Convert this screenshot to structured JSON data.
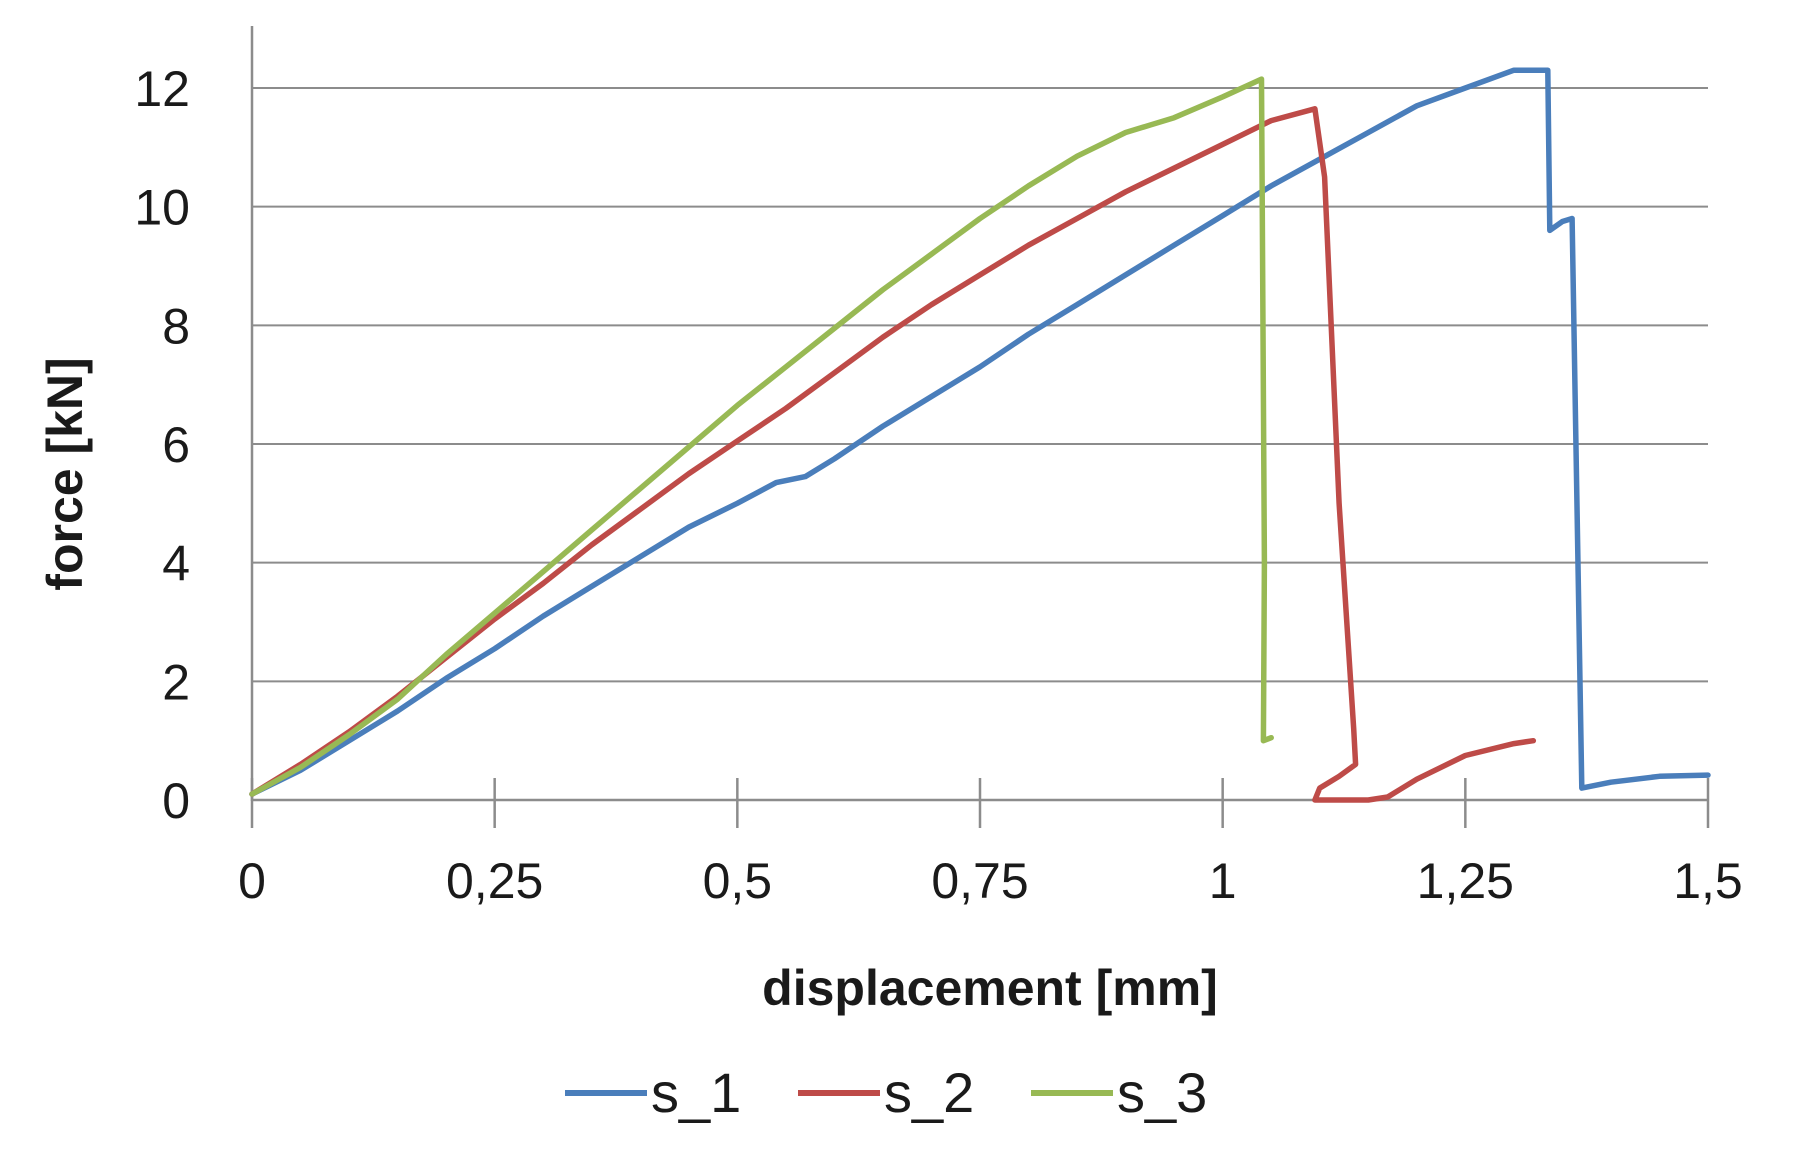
{
  "chart_data": {
    "type": "line",
    "title": "",
    "xlabel": "displacement [mm]",
    "ylabel": "force [kN]",
    "xlim": [
      0,
      1.5
    ],
    "ylim": [
      0,
      12
    ],
    "x_ticks": [
      {
        "value": 0,
        "label": "0"
      },
      {
        "value": 0.25,
        "label": "0,25"
      },
      {
        "value": 0.5,
        "label": "0,5"
      },
      {
        "value": 0.75,
        "label": "0,75"
      },
      {
        "value": 1,
        "label": "1"
      },
      {
        "value": 1.25,
        "label": "1,25"
      },
      {
        "value": 1.5,
        "label": "1,5"
      }
    ],
    "y_ticks": [
      {
        "value": 0,
        "label": "0"
      },
      {
        "value": 2,
        "label": "2"
      },
      {
        "value": 4,
        "label": "4"
      },
      {
        "value": 6,
        "label": "6"
      },
      {
        "value": 8,
        "label": "8"
      },
      {
        "value": 10,
        "label": "10"
      },
      {
        "value": 12,
        "label": "12"
      }
    ],
    "grid": "horizontal",
    "legend_position": "bottom",
    "series": [
      {
        "name": "s_1",
        "color": "#4a7ebb",
        "points": [
          [
            0,
            0.1
          ],
          [
            0.05,
            0.5
          ],
          [
            0.1,
            1.0
          ],
          [
            0.15,
            1.5
          ],
          [
            0.2,
            2.05
          ],
          [
            0.25,
            2.55
          ],
          [
            0.3,
            3.1
          ],
          [
            0.35,
            3.6
          ],
          [
            0.4,
            4.1
          ],
          [
            0.45,
            4.6
          ],
          [
            0.5,
            5.0
          ],
          [
            0.54,
            5.35
          ],
          [
            0.57,
            5.45
          ],
          [
            0.6,
            5.75
          ],
          [
            0.65,
            6.3
          ],
          [
            0.7,
            6.8
          ],
          [
            0.75,
            7.3
          ],
          [
            0.8,
            7.85
          ],
          [
            0.85,
            8.35
          ],
          [
            0.9,
            8.85
          ],
          [
            0.95,
            9.35
          ],
          [
            1.0,
            9.85
          ],
          [
            1.05,
            10.35
          ],
          [
            1.1,
            10.8
          ],
          [
            1.15,
            11.25
          ],
          [
            1.2,
            11.7
          ],
          [
            1.25,
            12.0
          ],
          [
            1.3,
            12.3
          ],
          [
            1.335,
            12.3
          ],
          [
            1.337,
            9.6
          ],
          [
            1.35,
            9.75
          ],
          [
            1.36,
            9.8
          ],
          [
            1.37,
            0.2
          ],
          [
            1.4,
            0.3
          ],
          [
            1.45,
            0.4
          ],
          [
            1.5,
            0.42
          ]
        ]
      },
      {
        "name": "s_2",
        "color": "#be4b48",
        "points": [
          [
            0,
            0.1
          ],
          [
            0.05,
            0.6
          ],
          [
            0.1,
            1.15
          ],
          [
            0.15,
            1.75
          ],
          [
            0.2,
            2.4
          ],
          [
            0.25,
            3.05
          ],
          [
            0.3,
            3.65
          ],
          [
            0.35,
            4.3
          ],
          [
            0.4,
            4.9
          ],
          [
            0.45,
            5.5
          ],
          [
            0.5,
            6.05
          ],
          [
            0.55,
            6.6
          ],
          [
            0.6,
            7.2
          ],
          [
            0.65,
            7.8
          ],
          [
            0.7,
            8.35
          ],
          [
            0.75,
            8.85
          ],
          [
            0.8,
            9.35
          ],
          [
            0.85,
            9.8
          ],
          [
            0.9,
            10.25
          ],
          [
            0.95,
            10.65
          ],
          [
            1.0,
            11.05
          ],
          [
            1.05,
            11.45
          ],
          [
            1.095,
            11.65
          ],
          [
            1.105,
            10.5
          ],
          [
            1.12,
            5.0
          ],
          [
            1.135,
            1.2
          ],
          [
            1.137,
            0.6
          ],
          [
            1.12,
            0.4
          ],
          [
            1.1,
            0.2
          ],
          [
            1.095,
            0.0
          ],
          [
            1.15,
            0.0
          ],
          [
            1.17,
            0.05
          ],
          [
            1.2,
            0.35
          ],
          [
            1.25,
            0.75
          ],
          [
            1.3,
            0.95
          ],
          [
            1.32,
            1.0
          ]
        ]
      },
      {
        "name": "s_3",
        "color": "#98b954",
        "points": [
          [
            0,
            0.1
          ],
          [
            0.05,
            0.55
          ],
          [
            0.1,
            1.1
          ],
          [
            0.15,
            1.7
          ],
          [
            0.2,
            2.45
          ],
          [
            0.25,
            3.15
          ],
          [
            0.3,
            3.85
          ],
          [
            0.35,
            4.55
          ],
          [
            0.4,
            5.25
          ],
          [
            0.45,
            5.95
          ],
          [
            0.5,
            6.65
          ],
          [
            0.55,
            7.3
          ],
          [
            0.6,
            7.95
          ],
          [
            0.65,
            8.6
          ],
          [
            0.7,
            9.2
          ],
          [
            0.75,
            9.8
          ],
          [
            0.8,
            10.35
          ],
          [
            0.85,
            10.85
          ],
          [
            0.9,
            11.25
          ],
          [
            0.95,
            11.5
          ],
          [
            1.0,
            11.85
          ],
          [
            1.04,
            12.15
          ],
          [
            1.043,
            4.0
          ],
          [
            1.042,
            1.0
          ],
          [
            1.05,
            1.05
          ]
        ]
      }
    ]
  }
}
